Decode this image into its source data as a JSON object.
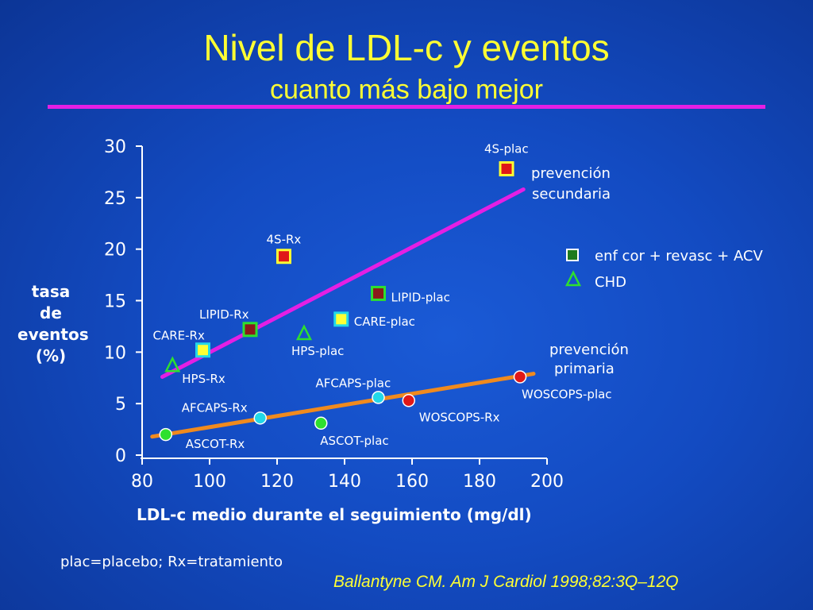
{
  "slide": {
    "title": "Nivel de LDL-c y eventos",
    "subtitle": "cuanto más bajo mejor",
    "footnote": "plac=placebo; Rx=tratamiento",
    "citation": "Ballantyne CM. Am J Cardiol 1998;82:3Q–12Q",
    "colors": {
      "title": "#ffff33",
      "rule": "#e41fe4",
      "secondary_line": "#e41fe4",
      "primary_line": "#f08a1e"
    }
  },
  "chart_data": {
    "type": "scatter",
    "xlabel": "LDL-c medio durante el seguimiento (mg/dl)",
    "ylabel_lines": [
      "tasa",
      "de",
      "eventos",
      "(%)"
    ],
    "xlim": [
      80,
      200
    ],
    "ylim": [
      0,
      30
    ],
    "xticks": [
      80,
      100,
      120,
      140,
      160,
      180,
      200
    ],
    "yticks": [
      0,
      5,
      10,
      15,
      20,
      25,
      30
    ],
    "legend": [
      {
        "label": "enf cor + revasc + ACV",
        "marker": "square",
        "color": "#1e7a1e"
      },
      {
        "label": "CHD",
        "marker": "triangle",
        "color": "#2ee02e"
      }
    ],
    "group_labels": [
      {
        "lines": [
          "prevención",
          "secundaria"
        ]
      },
      {
        "lines": [
          "prevención",
          "primaria"
        ]
      }
    ],
    "trend_lines": [
      {
        "name": "secundaria",
        "color": "#e41fe4",
        "x": [
          86,
          193
        ],
        "y": [
          7.6,
          25.8
        ]
      },
      {
        "name": "primaria",
        "color": "#f08a1e",
        "x": [
          83,
          196
        ],
        "y": [
          1.8,
          7.9
        ]
      }
    ],
    "points": [
      {
        "label": "4S-plac",
        "x": 188,
        "y": 27.8,
        "marker": "square",
        "fill": "#e01818",
        "border": "#ffff33"
      },
      {
        "label": "4S-Rx",
        "x": 122,
        "y": 19.3,
        "marker": "square",
        "fill": "#e01818",
        "border": "#ffff33"
      },
      {
        "label": "LIPID-plac",
        "x": 150,
        "y": 15.7,
        "marker": "square",
        "fill": "#8b1a1a",
        "border": "#2ee02e"
      },
      {
        "label": "LIPID-Rx",
        "x": 112,
        "y": 12.2,
        "marker": "square",
        "fill": "#8b1a1a",
        "border": "#2ee02e"
      },
      {
        "label": "CARE-plac",
        "x": 139,
        "y": 13.2,
        "marker": "square",
        "fill": "#ffff33",
        "border": "#22d8e8"
      },
      {
        "label": "CARE-Rx",
        "x": 98,
        "y": 10.2,
        "marker": "square",
        "fill": "#ffff33",
        "border": "#22d8e8"
      },
      {
        "label": "HPS-plac",
        "x": 128,
        "y": 11.8,
        "marker": "triangle",
        "fill": "none",
        "border": "#2ee02e"
      },
      {
        "label": "HPS-Rx",
        "x": 89,
        "y": 8.7,
        "marker": "triangle",
        "fill": "none",
        "border": "#2ee02e"
      },
      {
        "label": "WOSCOPS-plac",
        "x": 192,
        "y": 7.6,
        "marker": "circle",
        "fill": "#e01818",
        "border": "#ffffff"
      },
      {
        "label": "WOSCOPS-Rx",
        "x": 159,
        "y": 5.3,
        "marker": "circle",
        "fill": "#e01818",
        "border": "#ffffff"
      },
      {
        "label": "AFCAPS-plac",
        "x": 150,
        "y": 5.6,
        "marker": "circle",
        "fill": "#22d8e8",
        "border": "#ffffff"
      },
      {
        "label": "AFCAPS-Rx",
        "x": 115,
        "y": 3.6,
        "marker": "circle",
        "fill": "#22d8e8",
        "border": "#ffffff"
      },
      {
        "label": "ASCOT-plac",
        "x": 133,
        "y": 3.1,
        "marker": "circle",
        "fill": "#2ee02e",
        "border": "#ffffff"
      },
      {
        "label": "ASCOT-Rx",
        "x": 87,
        "y": 2.0,
        "marker": "circle",
        "fill": "#2ee02e",
        "border": "#ffffff"
      }
    ]
  }
}
